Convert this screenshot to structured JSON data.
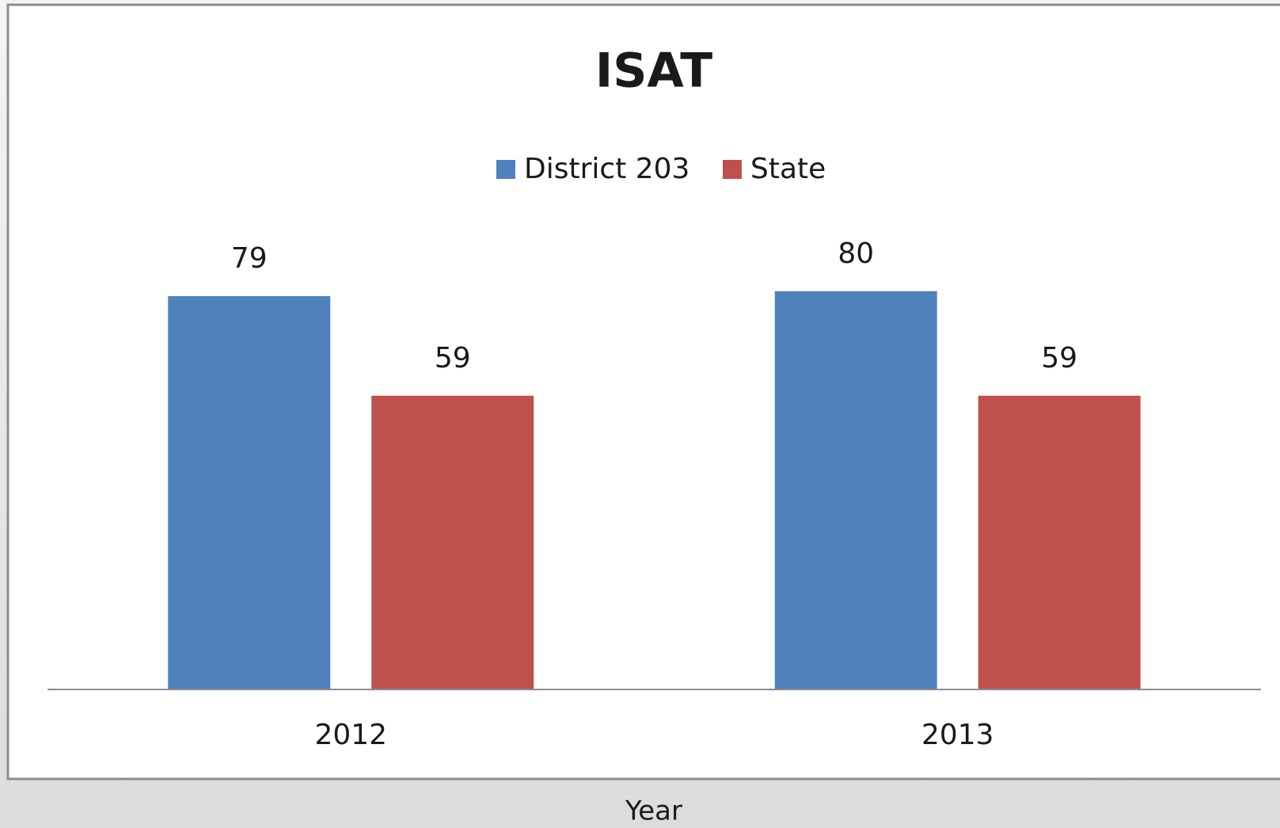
{
  "chart_data": {
    "type": "bar",
    "title": "ISAT",
    "x_label": "Year",
    "categories": [
      "2012",
      "2013"
    ],
    "series": [
      {
        "name": "District 203",
        "color": "#4f81bd",
        "values": [
          79,
          80
        ]
      },
      {
        "name": "State",
        "color": "#c0504d",
        "values": [
          59,
          59
        ]
      }
    ],
    "ylim": [
      0,
      100
    ],
    "legend": "top"
  }
}
